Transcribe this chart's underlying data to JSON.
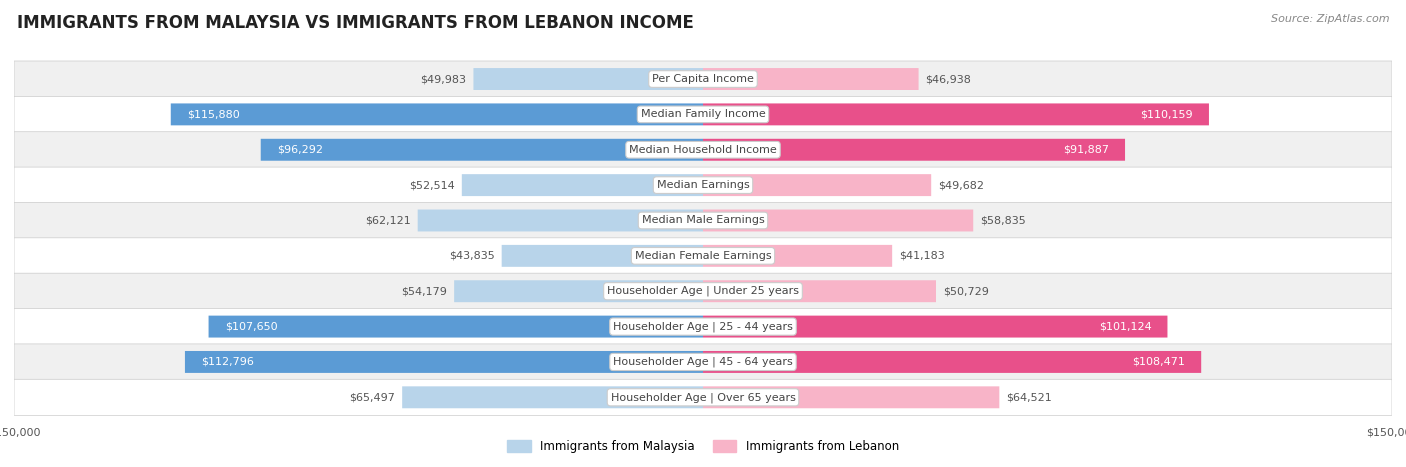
{
  "title": "IMMIGRANTS FROM MALAYSIA VS IMMIGRANTS FROM LEBANON INCOME",
  "source": "Source: ZipAtlas.com",
  "categories": [
    "Per Capita Income",
    "Median Family Income",
    "Median Household Income",
    "Median Earnings",
    "Median Male Earnings",
    "Median Female Earnings",
    "Householder Age | Under 25 years",
    "Householder Age | 25 - 44 years",
    "Householder Age | 45 - 64 years",
    "Householder Age | Over 65 years"
  ],
  "malaysia_values": [
    49983,
    115880,
    96292,
    52514,
    62121,
    43835,
    54179,
    107650,
    112796,
    65497
  ],
  "lebanon_values": [
    46938,
    110159,
    91887,
    49682,
    58835,
    41183,
    50729,
    101124,
    108471,
    64521
  ],
  "malaysia_labels": [
    "$49,983",
    "$115,880",
    "$96,292",
    "$52,514",
    "$62,121",
    "$43,835",
    "$54,179",
    "$107,650",
    "$112,796",
    "$65,497"
  ],
  "lebanon_labels": [
    "$46,938",
    "$110,159",
    "$91,887",
    "$49,682",
    "$58,835",
    "$41,183",
    "$50,729",
    "$101,124",
    "$108,471",
    "$64,521"
  ],
  "max_value": 150000,
  "malaysia_color_light": "#b8d4ea",
  "malaysia_color_dark": "#5b9bd5",
  "lebanon_color_light": "#f8b4c8",
  "lebanon_color_dark": "#e8508a",
  "inside_threshold": 75000,
  "row_bg_odd": "#f0f0f0",
  "row_bg_even": "#ffffff",
  "legend_malaysia": "Immigrants from Malaysia",
  "legend_lebanon": "Immigrants from Lebanon",
  "title_fontsize": 12,
  "source_fontsize": 8,
  "label_fontsize": 8,
  "axis_label_fontsize": 8,
  "category_fontsize": 8,
  "bar_height": 0.62
}
